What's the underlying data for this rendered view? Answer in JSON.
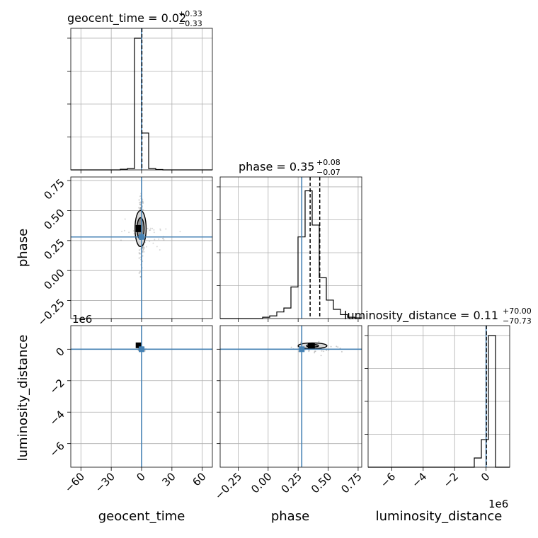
{
  "chart_data": {
    "type": "corner",
    "parameters": [
      {
        "name": "geocent_time",
        "label": "geocent_time",
        "range": [
          -70,
          70
        ],
        "truth": 0,
        "title": {
          "prefix": "geocent_time = ",
          "value": "0.02",
          "plus": "+0.33",
          "minus": "−0.33"
        },
        "ticks": [
          -60,
          -30,
          0,
          30,
          60
        ],
        "tick_labels": [
          "−60",
          "−30",
          "0",
          "30",
          "60"
        ],
        "quantiles": [],
        "median": 0.02
      },
      {
        "name": "phase",
        "label": "phase",
        "range": [
          -0.4,
          0.78
        ],
        "truth": 0.28,
        "title": {
          "prefix": "phase = ",
          "value": "0.35",
          "plus": "+0.08",
          "minus": "−0.07"
        },
        "ticks": [
          -0.25,
          0.0,
          0.25,
          0.5,
          0.75
        ],
        "tick_labels": [
          "−0.25",
          "0.00",
          "0.25",
          "0.50",
          "0.75"
        ],
        "quantiles": [
          0.28,
          0.35,
          0.43
        ],
        "median": 0.35
      },
      {
        "name": "luminosity_distance",
        "label": "luminosity_distance",
        "range": [
          -7.5,
          1.5
        ],
        "truth": 0,
        "title": {
          "prefix": "luminosity_distance = ",
          "value": "0.11",
          "plus": "+70.00",
          "minus": "−70.73"
        },
        "ticks": [
          -6,
          -4,
          -2,
          0
        ],
        "tick_labels": [
          "−6",
          "−4",
          "−2",
          "0"
        ],
        "offset_label": "1e6",
        "quantiles": [],
        "median": 0.0
      }
    ],
    "histograms": {
      "geocent_time": {
        "edges": [
          -70,
          -63,
          -56,
          -49,
          -42,
          -35,
          -28,
          -21,
          -14,
          -7,
          0,
          7,
          14,
          21,
          28,
          35,
          42,
          49,
          56,
          63,
          70
        ],
        "counts": [
          0,
          0,
          0,
          0,
          0,
          0,
          0,
          0.005,
          0.01,
          1.0,
          0.28,
          0.01,
          0.003,
          0,
          0,
          0,
          0,
          0,
          0,
          0
        ]
      },
      "phase": {
        "edges": [
          -0.4,
          -0.341,
          -0.282,
          -0.223,
          -0.164,
          -0.105,
          -0.046,
          0.013,
          0.072,
          0.131,
          0.19,
          0.249,
          0.308,
          0.367,
          0.426,
          0.485,
          0.544,
          0.603,
          0.662,
          0.721,
          0.78
        ],
        "counts": [
          0,
          0,
          0,
          0,
          0,
          0,
          0.01,
          0.02,
          0.05,
          0.08,
          0.24,
          0.62,
          0.97,
          0.71,
          0.31,
          0.14,
          0.07,
          0.03,
          0.01,
          0.005
        ]
      },
      "luminosity_distance": {
        "edges": [
          -7.5,
          -7.05,
          -6.6,
          -6.15,
          -5.7,
          -5.25,
          -4.8,
          -4.35,
          -3.9,
          -3.45,
          -3.0,
          -2.55,
          -2.1,
          -1.65,
          -1.2,
          -0.75,
          -0.3,
          0.15,
          0.6,
          1.05,
          1.5
        ],
        "counts": [
          0,
          0,
          0,
          0,
          0,
          0,
          0,
          0,
          0,
          0,
          0,
          0,
          0,
          0,
          0,
          0.07,
          0.21,
          1.0,
          0,
          0
        ]
      }
    },
    "contours_2d": {
      "phase_vs_geocent_time": {
        "center": [
          -2,
          0.35
        ],
        "levels": [
          {
            "rx": 3.5,
            "ry": 0.09
          },
          {
            "rx": 5.5,
            "ry": 0.15
          }
        ],
        "peak": [
          -3,
          0.35
        ]
      },
      "luminosity_distance_vs_geocent_time": {
        "peak": [
          -3,
          0.25
        ]
      },
      "luminosity_distance_vs_phase": {
        "center": [
          0.37,
          0.22
        ],
        "levels": [
          {
            "rx": 0.05,
            "ry": 0.09
          },
          {
            "rx": 0.12,
            "ry": 0.18
          }
        ],
        "peak": [
          0.36,
          0.22
        ]
      }
    },
    "truth_color": "#4682b4",
    "grid": true,
    "hist_color": "#000000",
    "sample_color": "#7f7f7f"
  }
}
